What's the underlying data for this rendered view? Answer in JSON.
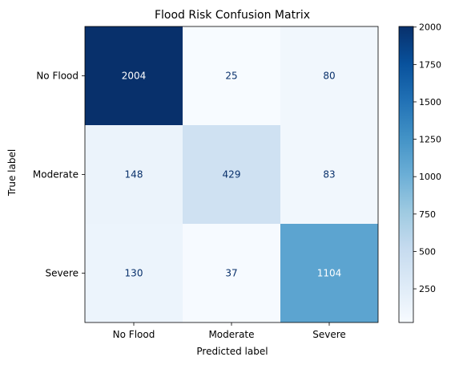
{
  "chart_data": {
    "type": "heatmap",
    "title": "Flood Risk Confusion Matrix",
    "xlabel": "Predicted label",
    "ylabel": "True label",
    "x_categories": [
      "No Flood",
      "Moderate",
      "Severe"
    ],
    "y_categories": [
      "No Flood",
      "Moderate",
      "Severe"
    ],
    "values": [
      [
        2004,
        25,
        80
      ],
      [
        148,
        429,
        83
      ],
      [
        130,
        37,
        1104
      ]
    ],
    "colormap": "Blues",
    "colorbar": {
      "range": [
        25,
        2004
      ],
      "ticks": [
        250,
        500,
        750,
        1000,
        1250,
        1500,
        1750,
        2000
      ]
    },
    "colors": {
      "low": "#f7fbff",
      "high": "#08306b"
    }
  }
}
